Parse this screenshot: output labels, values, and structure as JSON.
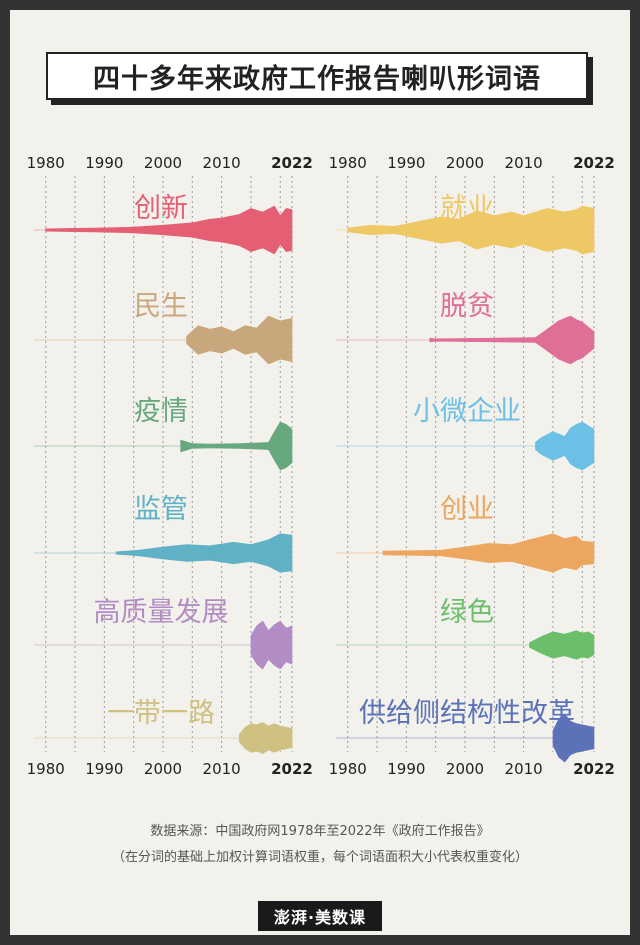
{
  "title": "四十多年来政府工作报告喇叭形词语",
  "source": "数据来源：中国政府网1978年至2022年《政府工作报告》",
  "note": "（在分词的基础上加权计算词语权重，每个词语面积大小代表权重变化）",
  "logo": "澎湃·美数课",
  "axis": {
    "tick_labels": [
      "1980",
      "1990",
      "2000",
      "2010",
      "2022"
    ]
  },
  "chart_data": {
    "type": "area",
    "x_range": [
      1978,
      2022
    ],
    "grid": true,
    "value_unit": "relative weight (0–1)",
    "panels": [
      {
        "column": "left",
        "series": [
          {
            "name": "创新",
            "color": "#e45e74",
            "points": [
              [
                1980,
                0.05
              ],
              [
                1988,
                0.08
              ],
              [
                1995,
                0.12
              ],
              [
                2000,
                0.2
              ],
              [
                2005,
                0.3
              ],
              [
                2008,
                0.45
              ],
              [
                2010,
                0.5
              ],
              [
                2013,
                0.65
              ],
              [
                2015,
                0.9
              ],
              [
                2017,
                0.75
              ],
              [
                2019,
                1.0
              ],
              [
                2020,
                0.6
              ],
              [
                2021,
                0.9
              ],
              [
                2022,
                0.85
              ]
            ]
          },
          {
            "name": "民生",
            "color": "#c9a77d",
            "points": [
              [
                2004,
                0.15
              ],
              [
                2006,
                0.6
              ],
              [
                2008,
                0.45
              ],
              [
                2010,
                0.55
              ],
              [
                2012,
                0.35
              ],
              [
                2014,
                0.6
              ],
              [
                2016,
                0.5
              ],
              [
                2018,
                1.0
              ],
              [
                2020,
                0.8
              ],
              [
                2022,
                0.9
              ]
            ]
          },
          {
            "name": "疫情",
            "color": "#67a87e",
            "points": [
              [
                2003,
                0.25
              ],
              [
                2005,
                0.1
              ],
              [
                2008,
                0.08
              ],
              [
                2013,
                0.1
              ],
              [
                2018,
                0.15
              ],
              [
                2019,
                0.6
              ],
              [
                2020,
                1.0
              ],
              [
                2021,
                0.9
              ],
              [
                2022,
                0.7
              ]
            ]
          },
          {
            "name": "监管",
            "color": "#5fb1c5",
            "points": [
              [
                1992,
                0.05
              ],
              [
                1996,
                0.12
              ],
              [
                2000,
                0.25
              ],
              [
                2004,
                0.35
              ],
              [
                2008,
                0.3
              ],
              [
                2012,
                0.45
              ],
              [
                2015,
                0.35
              ],
              [
                2018,
                0.55
              ],
              [
                2020,
                0.8
              ],
              [
                2022,
                0.75
              ]
            ]
          },
          {
            "name": "高质量发展",
            "color": "#b28cc4",
            "points": [
              [
                2015,
                0.4
              ],
              [
                2016,
                0.8
              ],
              [
                2017,
                1.0
              ],
              [
                2018,
                0.6
              ],
              [
                2019,
                0.85
              ],
              [
                2020,
                1.0
              ],
              [
                2021,
                0.7
              ],
              [
                2022,
                0.8
              ]
            ]
          },
          {
            "name": "一带一路",
            "color": "#cfc181",
            "points": [
              [
                2013,
                0.15
              ],
              [
                2014,
                0.45
              ],
              [
                2015,
                0.6
              ],
              [
                2016,
                0.55
              ],
              [
                2017,
                0.65
              ],
              [
                2018,
                0.5
              ],
              [
                2019,
                0.6
              ],
              [
                2020,
                0.5
              ],
              [
                2021,
                0.45
              ],
              [
                2022,
                0.4
              ]
            ]
          }
        ]
      },
      {
        "column": "right",
        "series": [
          {
            "name": "就业",
            "color": "#efc866",
            "points": [
              [
                1980,
                0.08
              ],
              [
                1984,
                0.2
              ],
              [
                1988,
                0.15
              ],
              [
                1992,
                0.35
              ],
              [
                1996,
                0.55
              ],
              [
                1999,
                0.45
              ],
              [
                2002,
                0.8
              ],
              [
                2005,
                0.6
              ],
              [
                2008,
                0.75
              ],
              [
                2010,
                0.6
              ],
              [
                2014,
                0.9
              ],
              [
                2017,
                0.75
              ],
              [
                2019,
                0.85
              ],
              [
                2020,
                1.0
              ],
              [
                2022,
                0.9
              ]
            ]
          },
          {
            "name": "脱贫",
            "color": "#e06f98",
            "points": [
              [
                1994,
                0.08
              ],
              [
                1995,
                0.05
              ],
              [
                2012,
                0.1
              ],
              [
                2014,
                0.45
              ],
              [
                2016,
                0.8
              ],
              [
                2018,
                1.0
              ],
              [
                2019,
                0.85
              ],
              [
                2020,
                0.75
              ],
              [
                2021,
                0.55
              ],
              [
                2022,
                0.35
              ]
            ]
          },
          {
            "name": "小微企业",
            "color": "#6cc0e6",
            "points": [
              [
                2012,
                0.15
              ],
              [
                2013,
                0.35
              ],
              [
                2015,
                0.6
              ],
              [
                2017,
                0.4
              ],
              [
                2018,
                0.75
              ],
              [
                2019,
                0.9
              ],
              [
                2020,
                1.0
              ],
              [
                2021,
                0.85
              ],
              [
                2022,
                0.7
              ]
            ]
          },
          {
            "name": "创业",
            "color": "#eca660",
            "points": [
              [
                1986,
                0.08
              ],
              [
                1992,
                0.1
              ],
              [
                1996,
                0.12
              ],
              [
                2000,
                0.25
              ],
              [
                2004,
                0.4
              ],
              [
                2008,
                0.35
              ],
              [
                2011,
                0.55
              ],
              [
                2015,
                0.8
              ],
              [
                2017,
                0.6
              ],
              [
                2019,
                0.7
              ],
              [
                2020,
                0.5
              ],
              [
                2022,
                0.45
              ]
            ]
          },
          {
            "name": "绿色",
            "color": "#6bbf6b",
            "points": [
              [
                2011,
                0.1
              ],
              [
                2013,
                0.35
              ],
              [
                2015,
                0.55
              ],
              [
                2017,
                0.45
              ],
              [
                2019,
                0.6
              ],
              [
                2020,
                0.5
              ],
              [
                2021,
                0.55
              ],
              [
                2022,
                0.4
              ]
            ]
          },
          {
            "name": "供给侧结构性改革",
            "color": "#5b72b9",
            "points": [
              [
                2015,
                0.3
              ],
              [
                2016,
                0.8
              ],
              [
                2017,
                1.0
              ],
              [
                2018,
                0.7
              ],
              [
                2019,
                0.6
              ],
              [
                2020,
                0.55
              ],
              [
                2021,
                0.5
              ],
              [
                2022,
                0.45
              ]
            ]
          }
        ]
      }
    ]
  }
}
